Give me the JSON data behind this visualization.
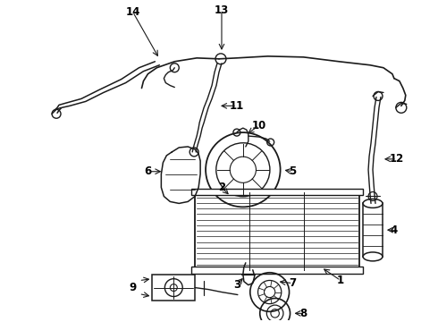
{
  "background_color": "#ffffff",
  "fig_width": 4.9,
  "fig_height": 3.6,
  "dpi": 100,
  "line_color": "#1a1a1a",
  "label_fontsize": 8.5,
  "label_color": "#000000"
}
